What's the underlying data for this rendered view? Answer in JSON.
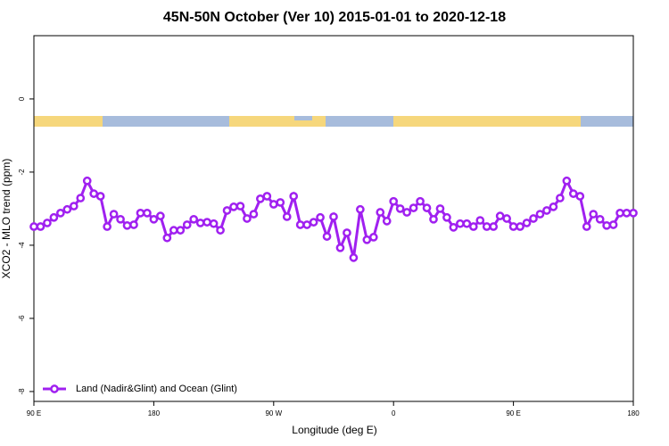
{
  "chart_data": {
    "type": "line",
    "title": "45N-50N October (Ver 10)   2015-01-01 to 2020-12-18",
    "x_label": "Longitude (deg E)",
    "y_label": "XCO2 - MLO trend (ppm)",
    "xlim": [
      90,
      540
    ],
    "xticks": [
      {
        "value": 90,
        "label": "90 E"
      },
      180,
      {
        "value": 270,
        "label": "90 W"
      },
      {
        "value": 360,
        "label": "0"
      },
      {
        "value": 450,
        "label": "90 E"
      },
      {
        "value": 540,
        "label": "180"
      }
    ],
    "ylim": [
      -8.27,
      1.73
    ],
    "yticks": [
      -8,
      -6,
      -4,
      -2,
      0
    ],
    "legend": "bottom left",
    "x": [
      90,
      95,
      100,
      105,
      110,
      115,
      120,
      125,
      130,
      135,
      140,
      145,
      150,
      155,
      160,
      165,
      170,
      175,
      180,
      185,
      190,
      195,
      200,
      205,
      210,
      215,
      220,
      225,
      230,
      235,
      240,
      245,
      250,
      255,
      260,
      265,
      270,
      275,
      280,
      285,
      290,
      295,
      300,
      305,
      310,
      315,
      320,
      325,
      330,
      335,
      340,
      345,
      350,
      355,
      360,
      365,
      370,
      375,
      380,
      385,
      390,
      395,
      400,
      405,
      410,
      415,
      420,
      425,
      430,
      435,
      440,
      445,
      450,
      455,
      460,
      465,
      470,
      475,
      480,
      485,
      490,
      495,
      500,
      505,
      510,
      515,
      520,
      525,
      530,
      535,
      540
    ],
    "series": [
      {
        "name": "Land (Nadir&Glint) and Ocean (Glint)",
        "color": "#a020f0",
        "values": [
          -3.49,
          -3.49,
          -3.39,
          -3.24,
          -3.12,
          -3.02,
          -2.93,
          -2.71,
          -2.24,
          -2.59,
          -2.66,
          -3.49,
          -3.15,
          -3.29,
          -3.46,
          -3.44,
          -3.12,
          -3.12,
          -3.29,
          -3.2,
          -3.8,
          -3.59,
          -3.59,
          -3.44,
          -3.29,
          -3.39,
          -3.37,
          -3.41,
          -3.59,
          -3.05,
          -2.95,
          -2.93,
          -3.27,
          -3.15,
          -2.73,
          -2.66,
          -2.88,
          -2.83,
          -3.22,
          -2.66,
          -3.44,
          -3.44,
          -3.37,
          -3.24,
          -3.76,
          -3.22,
          -4.07,
          -3.66,
          -4.34,
          -3.02,
          -3.85,
          -3.78,
          -3.1,
          -3.34,
          -2.8,
          -3.0,
          -3.1,
          -2.98,
          -2.8,
          -2.98,
          -3.29,
          -3.0,
          -3.24,
          -3.51,
          -3.41,
          -3.41,
          -3.49,
          -3.32,
          -3.49,
          -3.49,
          -3.2,
          -3.27,
          -3.49,
          -3.49,
          -3.39,
          -3.27,
          -3.15,
          -3.05,
          -2.95,
          -2.71,
          -2.24,
          -2.59,
          -2.66,
          -3.49,
          -3.15,
          -3.29,
          -3.46,
          -3.44,
          -3.12,
          -3.12,
          -3.12
        ]
      }
    ]
  }
}
